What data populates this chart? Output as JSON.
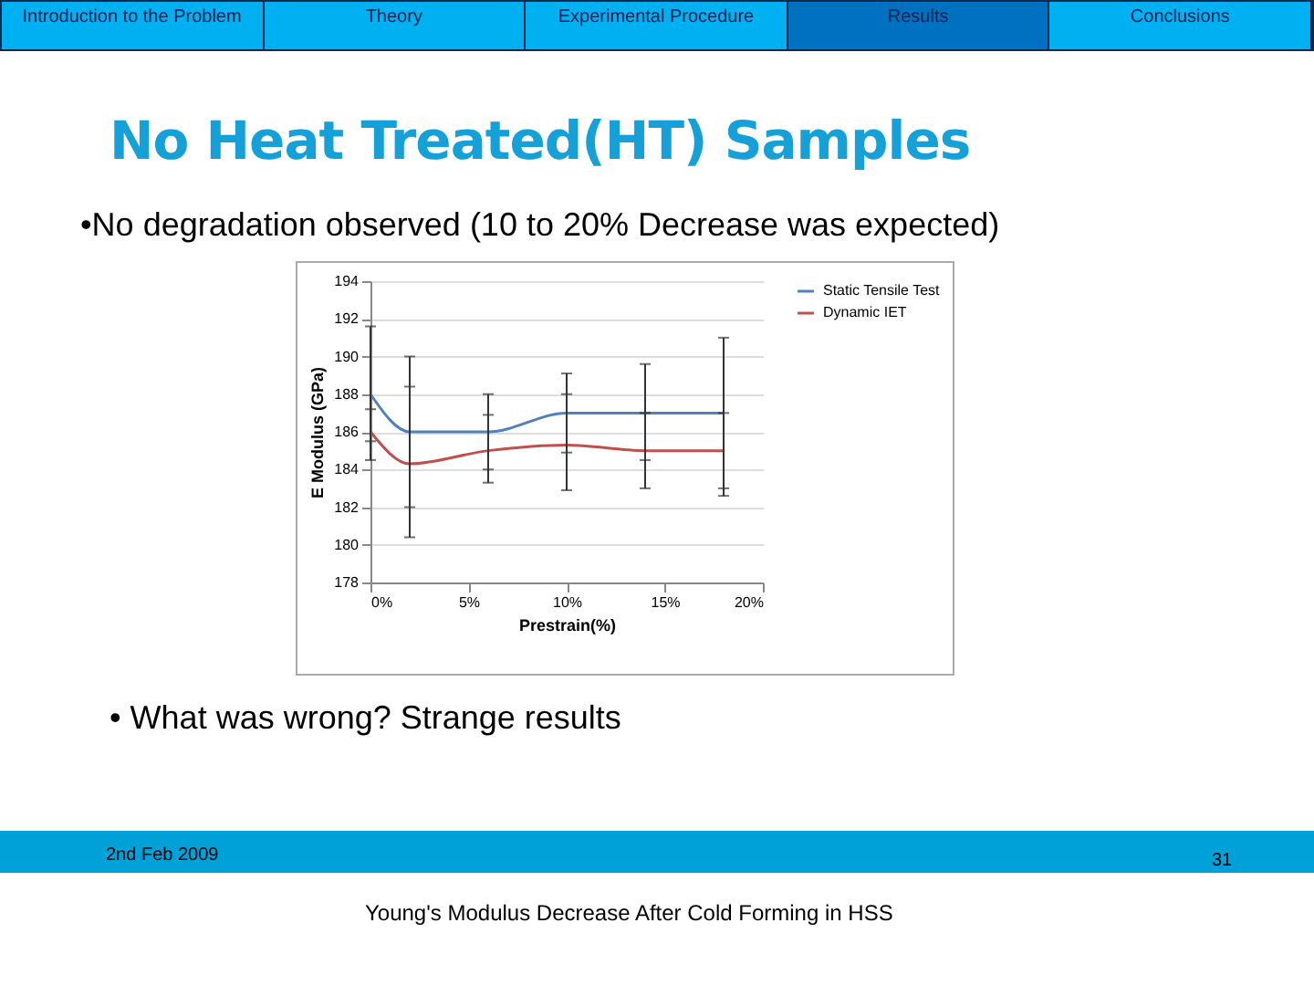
{
  "chart_data": {
    "type": "line",
    "title": "No Heat Treated(HT) Samples",
    "annotations": [
      "Introduction to the Problem",
      "Theory",
      "Experimental Procedure",
      "Results",
      "Conclusions",
      "•No degradation observed (10 to 20% Decrease was expected)",
      "• What was wrong? Strange results",
      "2nd Feb 2009",
      "31",
      "Young's Modulus Decrease After Cold Forming in HSS"
    ],
    "xlabel": "Prestrain(%)",
    "ylabel": "E Modulus (GPa)",
    "x": [
      0,
      2,
      6,
      10,
      14,
      18
    ],
    "series": [
      {
        "name": "Static Tensile Test",
        "color": "#4f81bd",
        "values": [
          188,
          186,
          186,
          187,
          187,
          187
        ],
        "errors": [
          [
            184.5,
            191.6
          ],
          [
            182,
            190
          ],
          [
            184,
            188
          ],
          [
            184.9,
            189.1
          ],
          [
            184.5,
            189.6
          ],
          [
            183,
            191
          ]
        ]
      },
      {
        "name": "Dynamic IET",
        "color": "#c0504d",
        "values": [
          186,
          184.3,
          185,
          185.3,
          185,
          185
        ],
        "errors": [
          [
            185.5,
            187.2
          ],
          [
            180.4,
            188.4
          ],
          [
            183.3,
            186.9
          ],
          [
            182.9,
            188
          ],
          [
            183,
            187
          ],
          [
            182.6,
            187
          ]
        ]
      }
    ],
    "xlim": [
      0,
      20
    ],
    "xticks": [
      {
        "value": 0,
        "label": "0%"
      },
      {
        "value": 5,
        "label": "5%"
      },
      {
        "value": 10,
        "label": "10%"
      },
      {
        "value": 15,
        "label": "15%"
      },
      {
        "value": 20,
        "label": "20%"
      }
    ],
    "ylim": [
      178,
      194
    ],
    "yticks": [
      178,
      180,
      182,
      184,
      186,
      188,
      190,
      192,
      194
    ],
    "grid": "y",
    "legend": "right",
    "marker": "none",
    "line_style": "solid"
  }
}
